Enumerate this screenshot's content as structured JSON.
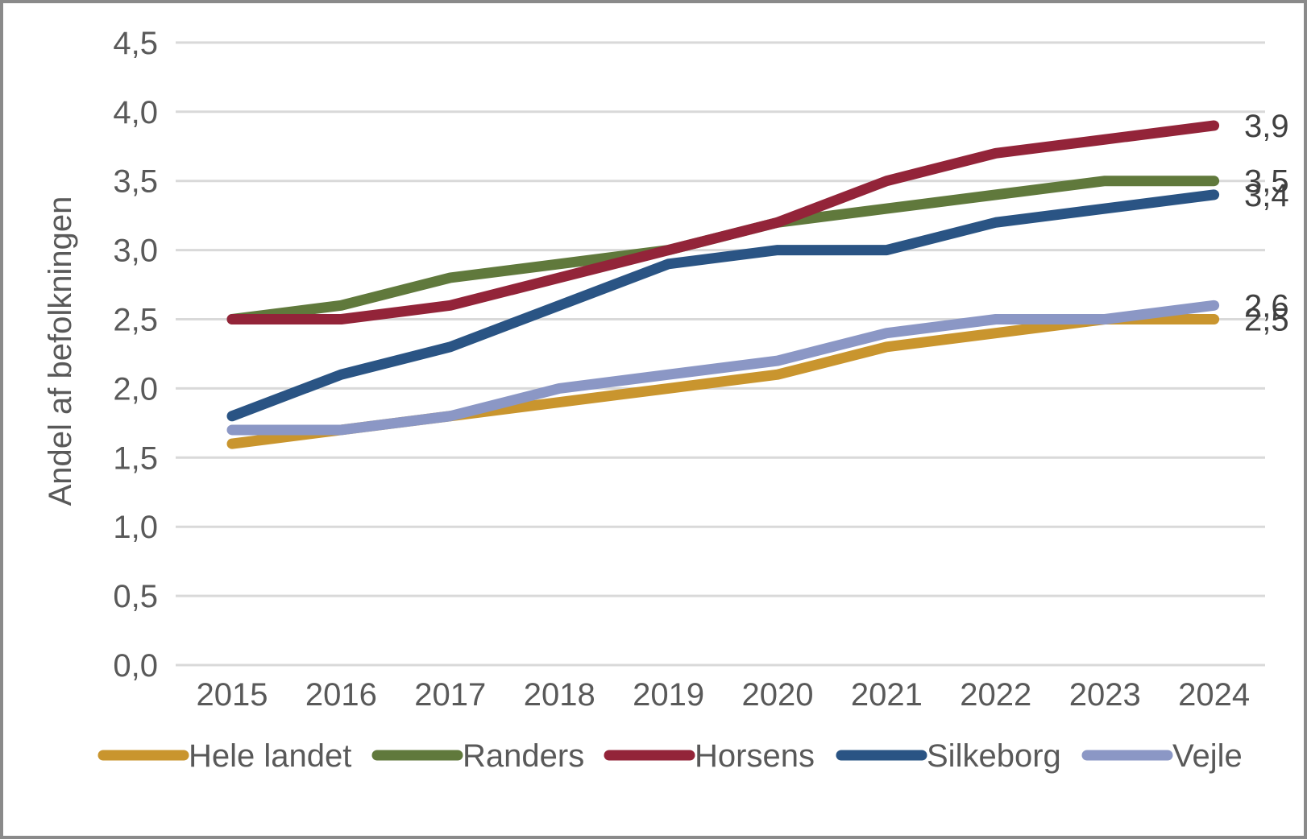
{
  "chart_data": {
    "type": "line",
    "title": "",
    "ylabel": "Andel af befolkningen",
    "xlabel": "",
    "categories": [
      "2015",
      "2016",
      "2017",
      "2018",
      "2019",
      "2020",
      "2021",
      "2022",
      "2023",
      "2024"
    ],
    "ylim": [
      0,
      4.5
    ],
    "ytick_step": 0.5,
    "yticks": [
      {
        "value": 4.5,
        "label": "4,5"
      },
      {
        "value": 4.0,
        "label": "4,0"
      },
      {
        "value": 3.5,
        "label": "3,5"
      },
      {
        "value": 3.0,
        "label": "3,0"
      },
      {
        "value": 2.5,
        "label": "2,5"
      },
      {
        "value": 2.0,
        "label": "2,0"
      },
      {
        "value": 1.5,
        "label": "1,5"
      },
      {
        "value": 1.0,
        "label": "1,0"
      },
      {
        "value": 0.5,
        "label": "0,5"
      },
      {
        "value": 0.0,
        "label": "0,0"
      }
    ],
    "grid": true,
    "legend_position": "bottom",
    "series": [
      {
        "name": "Hele landet",
        "color": "#C9952E",
        "end_label": "2,5",
        "values": [
          1.6,
          1.7,
          1.8,
          1.9,
          2.0,
          2.1,
          2.3,
          2.4,
          2.5,
          2.5
        ]
      },
      {
        "name": "Randers",
        "color": "#60793C",
        "end_label": "3,5",
        "values": [
          2.5,
          2.6,
          2.8,
          2.9,
          3.0,
          3.2,
          3.3,
          3.4,
          3.5,
          3.5
        ]
      },
      {
        "name": "Horsens",
        "color": "#932439",
        "end_label": "3,9",
        "values": [
          2.5,
          2.5,
          2.6,
          2.8,
          3.0,
          3.2,
          3.5,
          3.7,
          3.8,
          3.9
        ]
      },
      {
        "name": "Silkeborg",
        "color": "#2A5484",
        "end_label": "3,4",
        "values": [
          1.8,
          2.1,
          2.3,
          2.6,
          2.9,
          3.0,
          3.0,
          3.2,
          3.3,
          3.4
        ]
      },
      {
        "name": "Vejle",
        "color": "#8B97C5",
        "end_label": "2,6",
        "values": [
          1.7,
          1.7,
          1.8,
          2.0,
          2.1,
          2.2,
          2.4,
          2.5,
          2.5,
          2.6
        ]
      }
    ],
    "colors": {
      "axis_text": "#595959",
      "data_label_text": "#404040",
      "gridline": "#D9D9D9",
      "border": "#8A8A8A",
      "background": "#FFFFFF"
    }
  }
}
